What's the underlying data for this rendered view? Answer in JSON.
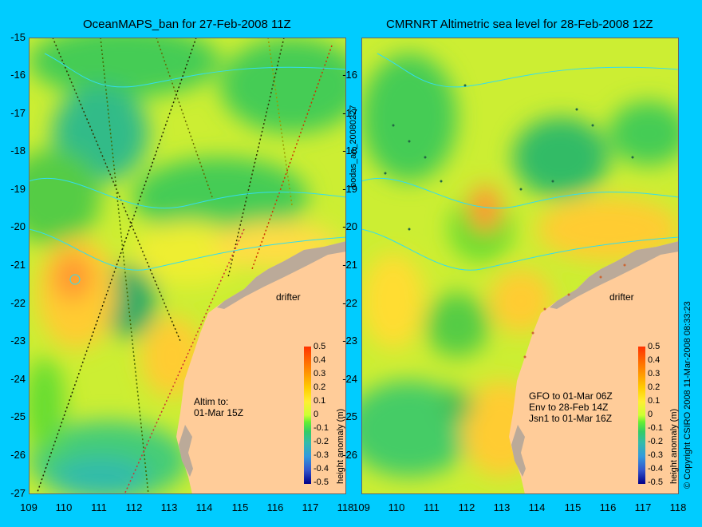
{
  "panels": [
    {
      "title": "OceanMAPS_ban for 27-Feb-2008 11Z",
      "notes": [
        "Altim to:",
        "01-Mar 15Z"
      ],
      "drifter": "drifter"
    },
    {
      "title": "CMRNRT Altimetric sea level  for 28-Feb-2008 12Z",
      "notes": [
        "GFO to 01-Mar 06Z",
        "Env to 28-Feb 14Z",
        "Jsn1 to 01-Mar 16Z"
      ],
      "drifter": "drifter"
    }
  ],
  "y_ticks": [
    "-15",
    "-16",
    "-17",
    "-18",
    "-19",
    "-20",
    "-21",
    "-22",
    "-23",
    "-24",
    "-25",
    "-26",
    "-27"
  ],
  "x_ticks": [
    "109",
    "110",
    "111",
    "112",
    "113",
    "114",
    "115",
    "116",
    "117",
    "118"
  ],
  "x_ticks_right": [
    "109",
    "110",
    "111",
    "112",
    "113",
    "114",
    "115",
    "116",
    "117",
    "118"
  ],
  "colorbar": {
    "ticks": [
      "0.5",
      "0.4",
      "0.3",
      "0.2",
      "0.1",
      "0",
      "-0.1",
      "-0.2",
      "-0.3",
      "-0.4",
      "-0.5"
    ],
    "label": "height anomaly (m)",
    "colors": [
      "#ff6600",
      "#ff9900",
      "#ffcc00",
      "#ffee33",
      "#ccff33",
      "#66ee33",
      "#33cc66",
      "#33bbaa",
      "#3399dd",
      "#3355cc",
      "#000088"
    ]
  },
  "side_label": "bodas_an_20080227",
  "copyright": "© Copyright CSIRO 2008  11-Mar-2008 08:33:23",
  "colors": {
    "background": "#00ccff",
    "land": "#ffcc99",
    "shelf": "#bbaa99"
  }
}
